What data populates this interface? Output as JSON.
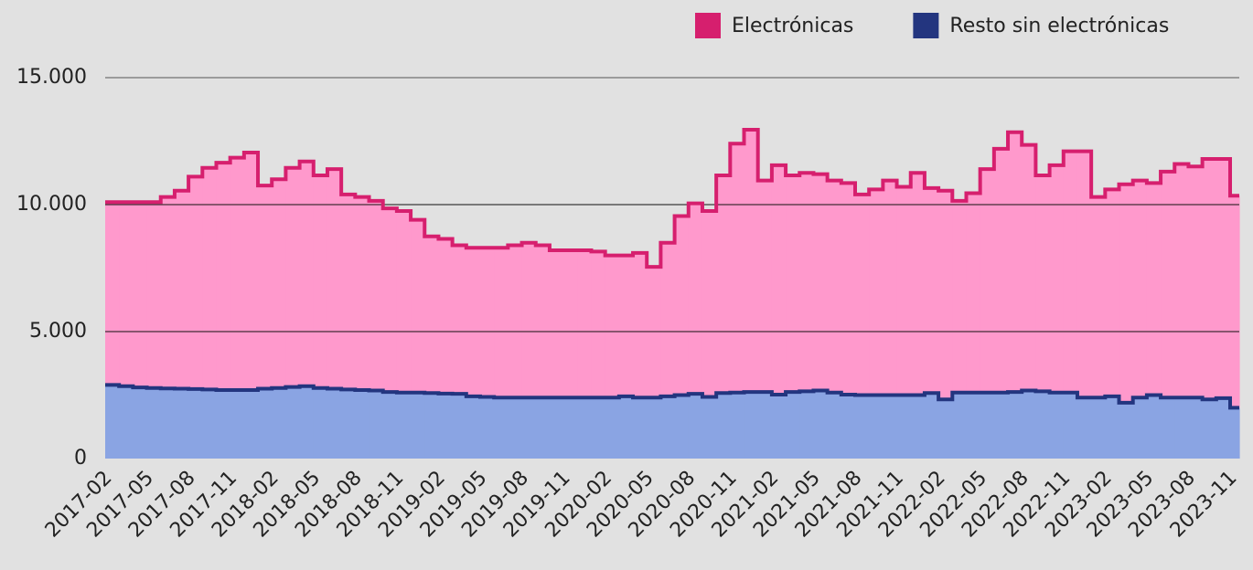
{
  "chart_data": {
    "type": "stacked-step-area",
    "categories": [
      "2017-02",
      null,
      null,
      "2017-05",
      null,
      null,
      "2017-08",
      null,
      null,
      "2017-11",
      null,
      null,
      "2018-02",
      null,
      null,
      "2018-05",
      null,
      null,
      "2018-08",
      null,
      null,
      "2018-11",
      null,
      null,
      "2019-02",
      null,
      null,
      "2019-05",
      null,
      null,
      "2019-08",
      null,
      null,
      "2019-11",
      null,
      null,
      "2020-02",
      null,
      null,
      "2020-05",
      null,
      null,
      "2020-08",
      null,
      null,
      "2020-11",
      null,
      null,
      "2021-02",
      null,
      null,
      "2021-05",
      null,
      null,
      "2021-08",
      null,
      null,
      "2021-11",
      null,
      null,
      "2022-02",
      null,
      null,
      "2022-05",
      null,
      null,
      "2022-08",
      null,
      null,
      "2022-11",
      null,
      null,
      "2023-02",
      null,
      null,
      "2023-05",
      null,
      null,
      "2023-08",
      null,
      null,
      "2023-11"
    ],
    "series": [
      {
        "name": "Resto sin electrónicas",
        "color": "#8aa4e3",
        "line_color": "#23357f",
        "values": [
          2900,
          2850,
          2800,
          2780,
          2760,
          2750,
          2740,
          2720,
          2700,
          2700,
          2700,
          2750,
          2780,
          2820,
          2850,
          2780,
          2750,
          2720,
          2700,
          2680,
          2620,
          2600,
          2600,
          2580,
          2560,
          2550,
          2450,
          2430,
          2400,
          2400,
          2400,
          2400,
          2400,
          2400,
          2400,
          2400,
          2400,
          2450,
          2400,
          2400,
          2450,
          2500,
          2550,
          2430,
          2580,
          2600,
          2620,
          2620,
          2520,
          2620,
          2650,
          2680,
          2600,
          2520,
          2500,
          2500,
          2500,
          2500,
          2500,
          2580,
          2330,
          2600,
          2600,
          2600,
          2600,
          2620,
          2680,
          2650,
          2600,
          2600,
          2400,
          2400,
          2450,
          2200,
          2400,
          2500,
          2400,
          2400,
          2400,
          2330,
          2380,
          2000
        ]
      },
      {
        "name": "Electrónicas",
        "color": "#ff99cc",
        "line_color": "#d61f6e",
        "values": [
          7200,
          7250,
          7300,
          7320,
          7540,
          7800,
          8360,
          8730,
          8950,
          9150,
          9350,
          8000,
          8220,
          8630,
          8850,
          8370,
          8650,
          7680,
          7600,
          7470,
          7230,
          7150,
          6800,
          6170,
          6090,
          5850,
          5850,
          5870,
          5900,
          6000,
          6100,
          6000,
          5800,
          5800,
          5800,
          5750,
          5600,
          5550,
          5700,
          5150,
          6050,
          7050,
          7500,
          7320,
          8570,
          9800,
          10330,
          8330,
          9030,
          8530,
          8600,
          8520,
          8350,
          8330,
          7900,
          8100,
          8450,
          8200,
          8750,
          8070,
          8220,
          7550,
          7850,
          8800,
          9600,
          10230,
          9670,
          8500,
          8950,
          9500,
          9700,
          7900,
          8150,
          8600,
          8550,
          8350,
          8900,
          9200,
          9100,
          9470,
          9420,
          8350
        ]
      }
    ],
    "ylim": [
      0,
      15000
    ],
    "yticks": [
      0,
      {
        "value": 5000,
        "label": "5.000"
      },
      {
        "value": 10000,
        "label": "10.000"
      },
      {
        "value": 15000,
        "label": "15.000"
      }
    ],
    "grid": true,
    "legend": "top-right"
  }
}
